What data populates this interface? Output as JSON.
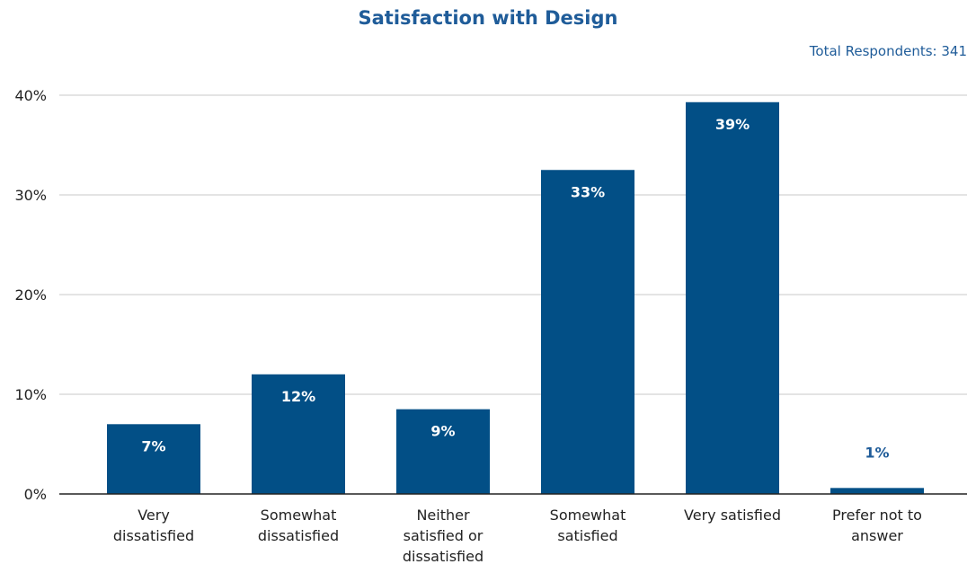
{
  "chart_data": {
    "type": "bar",
    "title": "Satisfaction with Design",
    "subtitle": "Total Respondents: 341",
    "categories": [
      [
        "Very",
        "dissatisfied"
      ],
      [
        "Somewhat",
        "dissatisfied"
      ],
      [
        "Neither",
        "satisfied or",
        "dissatisfied"
      ],
      [
        "Somewhat",
        "satisfied"
      ],
      [
        "Very satisfied"
      ],
      [
        "Prefer not to",
        "answer"
      ]
    ],
    "values": [
      7,
      12,
      8.5,
      32.5,
      39.3,
      0.6
    ],
    "data_labels": [
      "7%",
      "12%",
      "9%",
      "33%",
      "39%",
      "1%"
    ],
    "ylim": [
      0,
      40
    ],
    "yticks": [
      0,
      10,
      20,
      30,
      40
    ],
    "ytick_labels": [
      "0%",
      "10%",
      "20%",
      "30%",
      "40%"
    ],
    "xlabel": "",
    "ylabel": "",
    "grid": true,
    "colors": {
      "bar": "#024f86",
      "label_inside": "#ffffff",
      "label_outside": "#1f5c99",
      "grid": "#c8c8c8",
      "axis": "#222222"
    }
  }
}
